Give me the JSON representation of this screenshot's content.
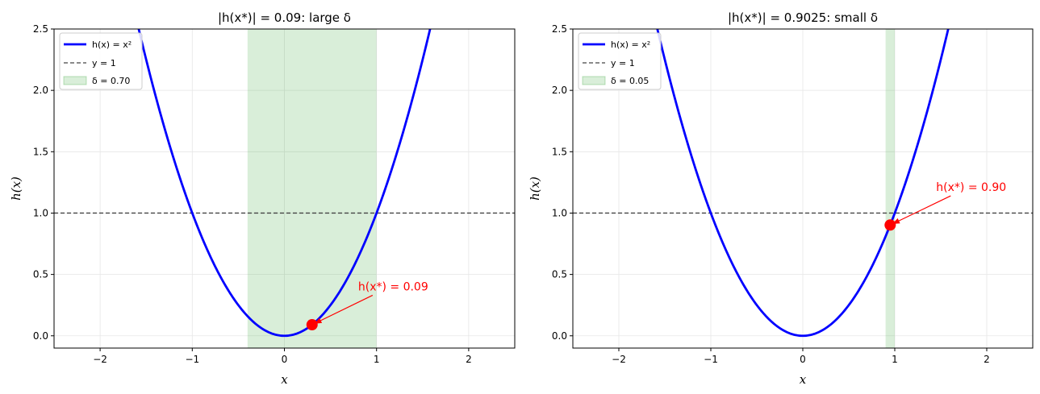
{
  "chart_data": [
    {
      "type": "line",
      "title": "|h(x*)| = 0.09: large δ",
      "xlabel": "x",
      "ylabel": "h(x)",
      "xlim": [
        -2.5,
        2.5
      ],
      "ylim": [
        -0.1,
        2.5
      ],
      "xticks": [
        -2,
        -1,
        0,
        1,
        2
      ],
      "yticks": [
        0.0,
        0.5,
        1.0,
        1.5,
        2.0,
        2.5
      ],
      "xtick_labels": [
        "−2",
        "−1",
        "0",
        "1",
        "2"
      ],
      "ytick_labels": [
        "0.0",
        "0.5",
        "1.0",
        "1.5",
        "2.0",
        "2.5"
      ],
      "grid": true,
      "legend_position": "top-left",
      "series": [
        {
          "name": "h(x) = x²",
          "kind": "function",
          "function": "x^2",
          "color": "#0000ff"
        },
        {
          "name": "y = 1",
          "kind": "hline",
          "y": 1.0,
          "color": "#444444"
        },
        {
          "name": "δ = 0.70",
          "kind": "band",
          "x_range": [
            -0.4,
            1.0
          ],
          "color": "#2ca02c"
        }
      ],
      "point": {
        "x": 0.3,
        "y": 0.09,
        "color": "#ff0000"
      },
      "annotation": {
        "text": "h(x*) = 0.09",
        "x": 0.8,
        "y": 0.37,
        "color": "#ff0000"
      }
    },
    {
      "type": "line",
      "title": "|h(x*)| = 0.9025: small δ",
      "xlabel": "x",
      "ylabel": "h(x)",
      "xlim": [
        -2.5,
        2.5
      ],
      "ylim": [
        -0.1,
        2.5
      ],
      "xticks": [
        -2,
        -1,
        0,
        1,
        2
      ],
      "yticks": [
        0.0,
        0.5,
        1.0,
        1.5,
        2.0,
        2.5
      ],
      "xtick_labels": [
        "−2",
        "−1",
        "0",
        "1",
        "2"
      ],
      "ytick_labels": [
        "0.0",
        "0.5",
        "1.0",
        "1.5",
        "2.0",
        "2.5"
      ],
      "grid": true,
      "legend_position": "top-left",
      "series": [
        {
          "name": "h(x) = x²",
          "kind": "function",
          "function": "x^2",
          "color": "#0000ff"
        },
        {
          "name": "y = 1",
          "kind": "hline",
          "y": 1.0,
          "color": "#444444"
        },
        {
          "name": "δ = 0.05",
          "kind": "band",
          "x_range": [
            0.9,
            1.0
          ],
          "color": "#2ca02c"
        }
      ],
      "point": {
        "x": 0.95,
        "y": 0.9025,
        "color": "#ff0000"
      },
      "annotation": {
        "text": "h(x*) = 0.90",
        "x": 1.45,
        "y": 1.18,
        "color": "#ff0000"
      }
    }
  ]
}
